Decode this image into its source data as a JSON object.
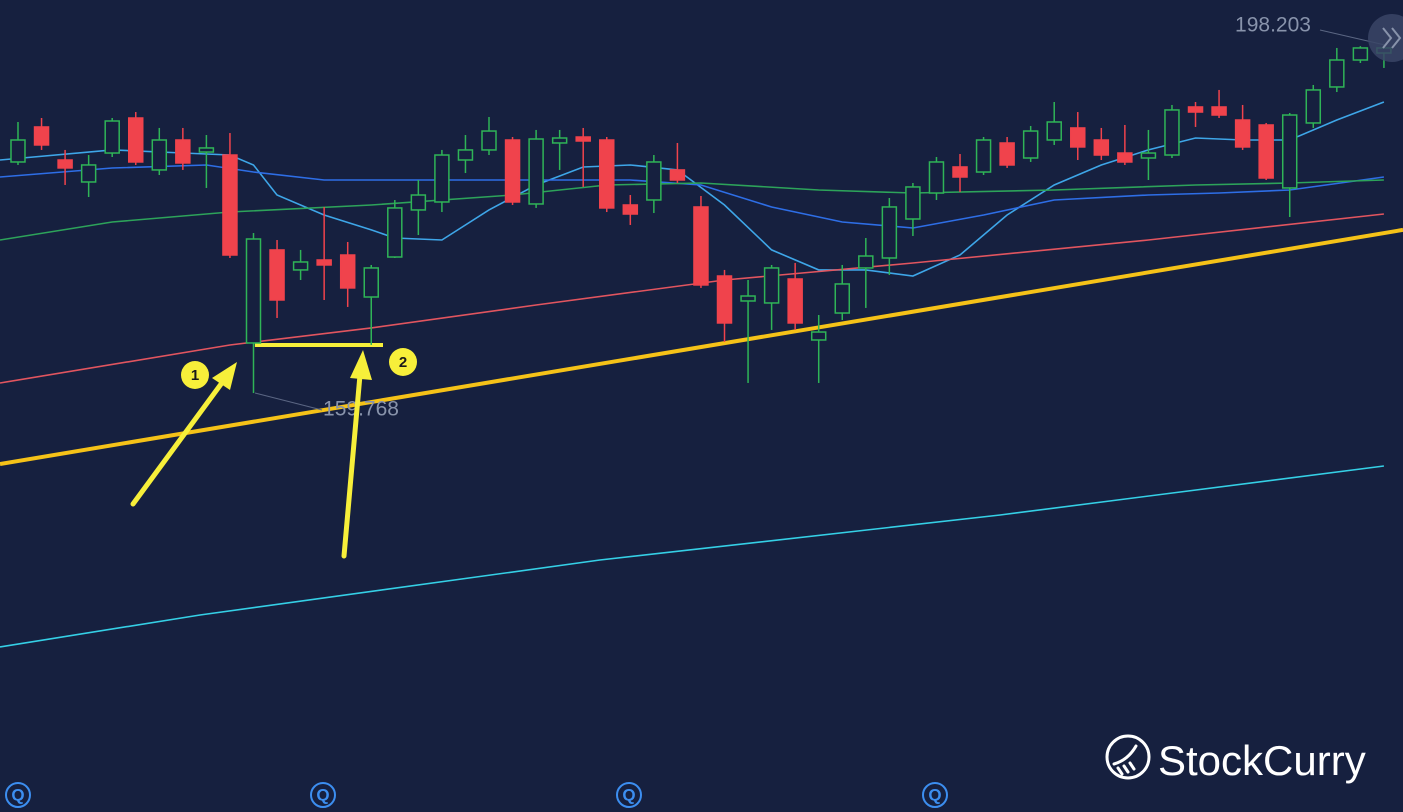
{
  "chart_data": {
    "type": "candlestick",
    "xlim": [
      -0.764,
      58.81
    ],
    "ylim": [
      113.47,
      203.2
    ],
    "up_color": "#2fb457",
    "down_color": "#f0434c",
    "open": [
      185.3,
      189.17,
      185.52,
      183.09,
      186.29,
      190.16,
      184.42,
      187.73,
      186.4,
      186.07,
      165.3,
      175.58,
      173.37,
      174.47,
      175.02,
      170.38,
      174.8,
      180.0,
      180.88,
      185.52,
      186.63,
      187.73,
      180.66,
      187.4,
      188.06,
      187.73,
      180.55,
      181.1,
      184.42,
      180.33,
      172.7,
      169.94,
      169.72,
      172.37,
      165.63,
      168.61,
      173.59,
      174.69,
      179.0,
      181.87,
      184.75,
      184.19,
      187.4,
      185.74,
      187.73,
      189.06,
      187.73,
      186.29,
      185.74,
      186.07,
      191.38,
      191.38,
      189.94,
      189.39,
      182.43,
      189.61,
      193.59,
      196.57,
      197.34
    ],
    "high": [
      189.72,
      190.16,
      186.63,
      186.07,
      190.16,
      190.82,
      189.06,
      189.06,
      188.28,
      188.5,
      177.45,
      176.68,
      175.58,
      180.33,
      176.46,
      173.92,
      181.1,
      183.31,
      186.63,
      188.28,
      190.27,
      188.06,
      188.84,
      188.84,
      189.06,
      188.06,
      181.65,
      186.07,
      187.4,
      181.54,
      173.37,
      172.26,
      173.92,
      174.14,
      168.39,
      173.92,
      176.9,
      181.32,
      182.98,
      185.85,
      186.18,
      188.06,
      188.06,
      189.28,
      191.93,
      190.82,
      189.06,
      189.39,
      188.84,
      191.6,
      191.93,
      193.26,
      191.6,
      189.61,
      190.71,
      193.81,
      197.9,
      198.1,
      198.203
    ],
    "low": [
      184.97,
      186.63,
      182.76,
      181.43,
      185.85,
      184.97,
      183.86,
      184.42,
      182.43,
      174.69,
      159.768,
      168.06,
      172.26,
      170.05,
      169.28,
      165.08,
      174.69,
      177.23,
      179.77,
      184.08,
      186.07,
      180.55,
      180.22,
      184.42,
      182.54,
      179.77,
      178.34,
      179.66,
      182.98,
      171.38,
      165.41,
      160.88,
      166.74,
      166.74,
      160.88,
      167.84,
      169.17,
      172.81,
      177.12,
      181.1,
      181.98,
      183.86,
      184.64,
      185.3,
      187.18,
      185.52,
      185.52,
      184.97,
      183.31,
      185.74,
      189.17,
      190.16,
      186.63,
      183.31,
      179.22,
      189.06,
      193.03,
      196.24,
      195.69
    ],
    "close": [
      187.73,
      187.18,
      184.64,
      184.97,
      189.83,
      185.3,
      187.73,
      185.19,
      186.85,
      175.02,
      176.79,
      170.05,
      174.25,
      173.92,
      171.38,
      173.59,
      180.22,
      181.65,
      186.07,
      186.63,
      188.72,
      180.88,
      187.84,
      187.95,
      187.62,
      180.22,
      179.55,
      185.3,
      183.31,
      171.71,
      167.51,
      170.49,
      173.59,
      167.51,
      166.51,
      171.82,
      174.91,
      180.33,
      182.54,
      185.3,
      183.64,
      187.73,
      184.97,
      188.72,
      189.72,
      186.96,
      186.07,
      185.3,
      186.29,
      191.05,
      190.82,
      190.49,
      186.96,
      183.53,
      190.49,
      193.26,
      196.57,
      197.9,
      197.9
    ],
    "series": [
      {
        "color": "#3ea6e8",
        "x": [
          -0.764,
          4,
          7,
          9,
          10,
          11,
          13,
          15,
          16,
          18,
          20,
          22,
          24,
          26,
          28,
          30,
          32,
          34,
          36,
          38,
          40,
          42,
          44,
          46,
          48,
          50,
          52,
          54,
          56,
          58
        ],
        "values": [
          185.52,
          186.63,
          186.29,
          186.07,
          184.97,
          181.65,
          179.44,
          177.79,
          176.9,
          176.68,
          180.0,
          182.76,
          184.75,
          184.97,
          184.42,
          180.55,
          175.58,
          173.37,
          173.37,
          172.7,
          175.02,
          179.44,
          182.76,
          184.97,
          186.63,
          187.95,
          187.73,
          187.73,
          189.94,
          191.93
        ]
      },
      {
        "color": "#2e6ee6",
        "x": [
          -0.764,
          4,
          8,
          10,
          13,
          17,
          22,
          26,
          29,
          32,
          35,
          38,
          41,
          44,
          48,
          51,
          54,
          58
        ],
        "values": [
          183.64,
          184.64,
          184.97,
          184.19,
          183.31,
          183.31,
          183.31,
          183.31,
          182.76,
          180.33,
          178.67,
          178.01,
          179.44,
          181.1,
          181.65,
          181.87,
          182.2,
          183.64
        ]
      },
      {
        "color": "#2da35a",
        "x": [
          -0.764,
          4,
          9,
          15,
          21,
          25,
          29,
          34,
          38,
          44,
          50,
          54,
          58
        ],
        "values": [
          176.68,
          178.67,
          179.77,
          180.55,
          181.65,
          182.76,
          182.98,
          182.2,
          181.87,
          182.2,
          182.76,
          182.98,
          183.31
        ]
      },
      {
        "color": "#e2555f",
        "x": [
          -0.764,
          9,
          15,
          22,
          30,
          38,
          48,
          58
        ],
        "values": [
          160.88,
          165.08,
          166.96,
          169.5,
          172.26,
          174.14,
          176.68,
          179.55
        ]
      },
      {
        "color": "#35d0e6",
        "x": [
          -0.764,
          7.73,
          24.71,
          41.7,
          58
        ],
        "values": [
          131.71,
          135.24,
          141.32,
          146.29,
          151.71
        ]
      }
    ],
    "trendlines": [
      {
        "color": "#f5c218",
        "x": [
          -0.764,
          58.81
        ],
        "values": [
          151.93,
          177.79
        ]
      },
      {
        "color": "#f7ef3a",
        "x": [
          10.06,
          15.5
        ],
        "values": [
          165.08,
          165.08
        ]
      }
    ],
    "annotations": [
      "1",
      "2"
    ],
    "event_markers": [
      "Q",
      "Q",
      "Q",
      "Q"
    ]
  },
  "branding": {
    "logo": "StockCurry"
  }
}
